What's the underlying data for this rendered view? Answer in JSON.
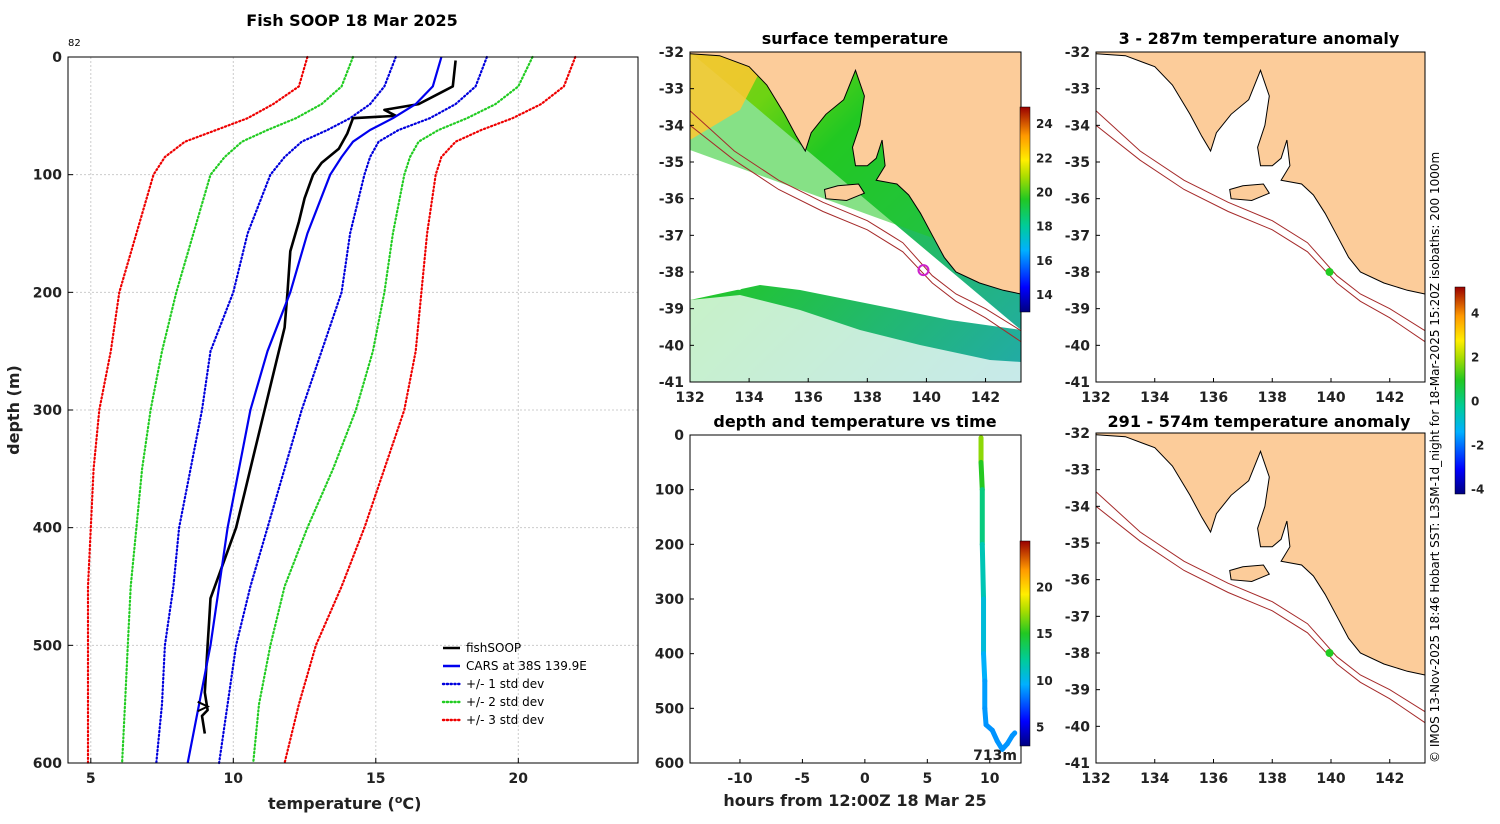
{
  "side_note": "© IMOS 13-Nov-2025 18:46 Hobart SST: L3SM-1d_night for 18-Mar-2025 15:20Z isobaths: 200  1000m",
  "chart_data": [
    {
      "type": "line",
      "title": "Fish SOOP 18 Mar 2025",
      "corner_label": "82",
      "xlabel": "temperature (",
      "xlabel_unit": "o",
      "xlabel_end": "C)",
      "ylabel": "depth (m)",
      "xlim": [
        4.2,
        24.2
      ],
      "ylim": [
        0,
        600
      ],
      "y_inverted": true,
      "grid": true,
      "xticks": [
        5,
        10,
        15,
        20
      ],
      "yticks": [
        0,
        100,
        200,
        300,
        400,
        500,
        600
      ],
      "legend_position": "bottom-right",
      "series": [
        {
          "name": "fishSOOP",
          "color": "#000000",
          "style": "solid",
          "points": [
            [
              17.8,
              3
            ],
            [
              17.7,
              25
            ],
            [
              17.3,
              30
            ],
            [
              16.5,
              40
            ],
            [
              15.3,
              45
            ],
            [
              15.7,
              50
            ],
            [
              14.2,
              52
            ],
            [
              14.0,
              65
            ],
            [
              13.7,
              78
            ],
            [
              13.1,
              90
            ],
            [
              12.8,
              100
            ],
            [
              12.5,
              120
            ],
            [
              12.3,
              140
            ],
            [
              12.0,
              165
            ],
            [
              11.9,
              200
            ],
            [
              11.8,
              230
            ],
            [
              11.5,
              260
            ],
            [
              11.1,
              300
            ],
            [
              10.7,
              340
            ],
            [
              10.4,
              370
            ],
            [
              10.1,
              400
            ],
            [
              9.8,
              420
            ],
            [
              9.5,
              440
            ],
            [
              9.2,
              460
            ],
            [
              9.15,
              480
            ],
            [
              9.1,
              500
            ],
            [
              9.05,
              520
            ],
            [
              9.0,
              540
            ],
            [
              9.1,
              555
            ],
            [
              8.9,
              560
            ],
            [
              9.0,
              575
            ]
          ]
        },
        {
          "name": "CARS at 38S 139.9E",
          "color": "#0000ee",
          "style": "solid",
          "points": [
            [
              17.3,
              0
            ],
            [
              17.0,
              25
            ],
            [
              16.4,
              40
            ],
            [
              15.6,
              52
            ],
            [
              14.8,
              62
            ],
            [
              14.2,
              72
            ],
            [
              13.8,
              85
            ],
            [
              13.4,
              100
            ],
            [
              12.6,
              150
            ],
            [
              12.0,
              200
            ],
            [
              11.2,
              250
            ],
            [
              10.6,
              300
            ],
            [
              10.2,
              350
            ],
            [
              9.8,
              400
            ],
            [
              9.5,
              450
            ],
            [
              9.2,
              500
            ],
            [
              8.8,
              550
            ],
            [
              8.4,
              600
            ]
          ]
        },
        {
          "name": "+/- 1 std dev",
          "color": "#0000dd",
          "style": "dotted",
          "points": [
            [
              15.7,
              0
            ],
            [
              15.3,
              25
            ],
            [
              14.8,
              40
            ],
            [
              14.1,
              52
            ],
            [
              13.3,
              62
            ],
            [
              12.4,
              72
            ],
            [
              11.8,
              85
            ],
            [
              11.3,
              100
            ],
            [
              10.5,
              150
            ],
            [
              10.0,
              200
            ],
            [
              9.2,
              250
            ],
            [
              8.9,
              300
            ],
            [
              8.5,
              350
            ],
            [
              8.1,
              400
            ],
            [
              7.9,
              450
            ],
            [
              7.6,
              500
            ],
            [
              7.5,
              550
            ],
            [
              7.3,
              600
            ]
          ]
        },
        {
          "name": "+/- 1 std dev",
          "color": "#0000dd",
          "style": "dotted",
          "points": [
            [
              18.9,
              0
            ],
            [
              18.5,
              25
            ],
            [
              17.8,
              40
            ],
            [
              16.9,
              52
            ],
            [
              15.8,
              62
            ],
            [
              15.1,
              72
            ],
            [
              14.8,
              85
            ],
            [
              14.6,
              100
            ],
            [
              14.1,
              150
            ],
            [
              13.8,
              200
            ],
            [
              13.1,
              250
            ],
            [
              12.4,
              300
            ],
            [
              11.8,
              350
            ],
            [
              11.2,
              400
            ],
            [
              10.6,
              450
            ],
            [
              10.1,
              500
            ],
            [
              9.8,
              550
            ],
            [
              9.5,
              600
            ]
          ]
        },
        {
          "name": "+/- 2 std dev",
          "color": "#22cc22",
          "style": "dotted",
          "points": [
            [
              14.2,
              0
            ],
            [
              13.8,
              25
            ],
            [
              13.1,
              40
            ],
            [
              12.2,
              52
            ],
            [
              11.2,
              62
            ],
            [
              10.3,
              72
            ],
            [
              9.7,
              85
            ],
            [
              9.2,
              100
            ],
            [
              8.6,
              150
            ],
            [
              8.0,
              200
            ],
            [
              7.5,
              250
            ],
            [
              7.1,
              300
            ],
            [
              6.8,
              350
            ],
            [
              6.6,
              400
            ],
            [
              6.4,
              450
            ],
            [
              6.3,
              500
            ],
            [
              6.2,
              550
            ],
            [
              6.1,
              600
            ]
          ]
        },
        {
          "name": "+/- 2 std dev",
          "color": "#22cc22",
          "style": "dotted",
          "points": [
            [
              20.5,
              0
            ],
            [
              20.0,
              25
            ],
            [
              19.2,
              40
            ],
            [
              18.2,
              52
            ],
            [
              17.2,
              62
            ],
            [
              16.5,
              72
            ],
            [
              16.2,
              85
            ],
            [
              16.0,
              100
            ],
            [
              15.6,
              150
            ],
            [
              15.3,
              200
            ],
            [
              14.9,
              250
            ],
            [
              14.3,
              300
            ],
            [
              13.5,
              350
            ],
            [
              12.6,
              400
            ],
            [
              11.8,
              450
            ],
            [
              11.3,
              500
            ],
            [
              10.9,
              550
            ],
            [
              10.7,
              600
            ]
          ]
        },
        {
          "name": "+/- 3 std dev",
          "color": "#ee0000",
          "style": "dotted",
          "points": [
            [
              12.6,
              0
            ],
            [
              12.3,
              25
            ],
            [
              11.4,
              40
            ],
            [
              10.5,
              52
            ],
            [
              9.4,
              62
            ],
            [
              8.3,
              72
            ],
            [
              7.6,
              85
            ],
            [
              7.2,
              100
            ],
            [
              6.6,
              150
            ],
            [
              6.0,
              200
            ],
            [
              5.7,
              250
            ],
            [
              5.3,
              300
            ],
            [
              5.1,
              350
            ],
            [
              5.0,
              400
            ],
            [
              4.9,
              450
            ],
            [
              4.9,
              500
            ],
            [
              4.9,
              550
            ],
            [
              4.9,
              600
            ]
          ]
        },
        {
          "name": "+/- 3 std dev",
          "color": "#ee0000",
          "style": "dotted",
          "points": [
            [
              22.0,
              0
            ],
            [
              21.6,
              25
            ],
            [
              20.8,
              40
            ],
            [
              19.8,
              52
            ],
            [
              18.7,
              62
            ],
            [
              17.8,
              72
            ],
            [
              17.3,
              85
            ],
            [
              17.1,
              100
            ],
            [
              16.8,
              150
            ],
            [
              16.6,
              200
            ],
            [
              16.4,
              250
            ],
            [
              16.0,
              300
            ],
            [
              15.3,
              350
            ],
            [
              14.6,
              400
            ],
            [
              13.8,
              450
            ],
            [
              12.9,
              500
            ],
            [
              12.3,
              550
            ],
            [
              11.8,
              600
            ]
          ]
        }
      ]
    },
    {
      "type": "heatmap",
      "title": "surface temperature",
      "xlim": [
        132,
        143.2
      ],
      "ylim": [
        -41,
        -32
      ],
      "xticks": [
        "132",
        "134",
        "136",
        "138",
        "140",
        "142"
      ],
      "yticks": [
        "-32",
        "-33",
        "-34",
        "-35",
        "-36",
        "-37",
        "-38",
        "-39",
        "-40",
        "-41"
      ],
      "colorbar_range": [
        13,
        25
      ],
      "colorbar_ticks": [
        "14",
        "16",
        "18",
        "20",
        "22",
        "24"
      ],
      "marker": {
        "lon": 139.9,
        "lat": -37.95,
        "color": "#cc22cc"
      }
    },
    {
      "type": "scatter",
      "title": "depth and temperature vs time",
      "xlabel": "hours from 12:00Z 18 Mar 25",
      "xlim": [
        -14,
        12.5
      ],
      "ylim": [
        0,
        600
      ],
      "y_inverted": true,
      "xticks": [
        "-10",
        "-5",
        "0",
        "5",
        "10"
      ],
      "yticks": [
        "0",
        "100",
        "200",
        "300",
        "400",
        "500",
        "600"
      ],
      "colorbar_range": [
        3,
        25
      ],
      "colorbar_ticks": [
        "5",
        "10",
        "15",
        "20"
      ],
      "bottom_depth_label": "713m",
      "points": [
        [
          9.3,
          5,
          17.5
        ],
        [
          9.3,
          50,
          16.5
        ],
        [
          9.4,
          100,
          13.8
        ],
        [
          9.4,
          200,
          12.0
        ],
        [
          9.5,
          300,
          11.1
        ],
        [
          9.5,
          400,
          10.1
        ],
        [
          9.6,
          450,
          9.3
        ],
        [
          9.6,
          500,
          9.1
        ],
        [
          9.7,
          530,
          9.0
        ],
        [
          10.2,
          540,
          8.9
        ],
        [
          10.6,
          560,
          9.0
        ],
        [
          11.0,
          575,
          9.0
        ],
        [
          11.4,
          565,
          9.0
        ],
        [
          11.8,
          550,
          9.0
        ],
        [
          12.0,
          545,
          9.0
        ]
      ]
    },
    {
      "type": "heatmap",
      "title": "3 - 287m temperature anomaly",
      "xlim": [
        132,
        143.2
      ],
      "ylim": [
        -41,
        -32
      ],
      "xticks": [
        "132",
        "134",
        "136",
        "138",
        "140",
        "142"
      ],
      "yticks": [
        "-32",
        "-33",
        "-34",
        "-35",
        "-36",
        "-37",
        "-38",
        "-39",
        "-40",
        "-41"
      ],
      "marker": {
        "lon": 139.95,
        "lat": -38.0,
        "color": "#22cc22"
      }
    },
    {
      "type": "heatmap",
      "title": "291 - 574m temperature anomaly",
      "xlim": [
        132,
        143.2
      ],
      "ylim": [
        -41,
        -32
      ],
      "xticks": [
        "132",
        "134",
        "136",
        "138",
        "140",
        "142"
      ],
      "yticks": [
        "-32",
        "-33",
        "-34",
        "-35",
        "-36",
        "-37",
        "-38",
        "-39",
        "-40",
        "-41"
      ],
      "marker": {
        "lon": 139.95,
        "lat": -38.0,
        "color": "#22cc22"
      },
      "colorbar_range": [
        -4.2,
        5.2
      ],
      "colorbar_ticks": [
        "4",
        "2",
        "0",
        "-2",
        "-4"
      ]
    }
  ]
}
